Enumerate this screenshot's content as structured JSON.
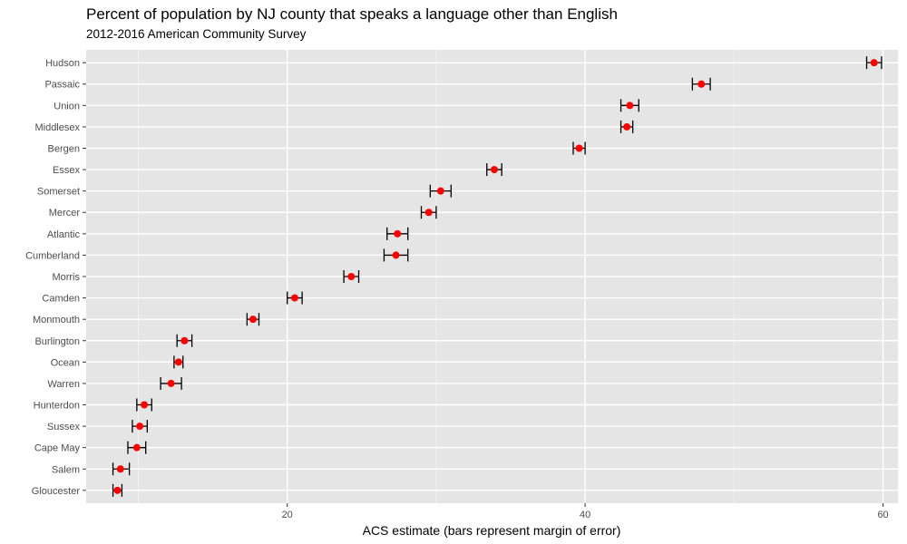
{
  "chart_data": {
    "type": "scatter",
    "title": "Percent of population by NJ county that speaks a language other than English",
    "subtitle": "2012-2016 American Community Survey",
    "xlabel": "ACS estimate (bars represent margin of error)",
    "ylabel": "",
    "xlim": [
      6.5,
      61
    ],
    "x_ticks": [
      20,
      40,
      60
    ],
    "x_minor_ticks": [
      10,
      30,
      50
    ],
    "grid": true,
    "legend": "none",
    "colors": {
      "panel_background": "#e5e5e5",
      "grid_major": "#ffffff",
      "point": "#ff0000",
      "error_bar": "#000000",
      "tick_label": "#4d4d4d"
    },
    "categories": [
      "Hudson",
      "Passaic",
      "Union",
      "Middlesex",
      "Bergen",
      "Essex",
      "Somerset",
      "Mercer",
      "Atlantic",
      "Cumberland",
      "Morris",
      "Camden",
      "Monmouth",
      "Burlington",
      "Ocean",
      "Warren",
      "Hunterdon",
      "Sussex",
      "Cape May",
      "Salem",
      "Gloucester"
    ],
    "series": [
      {
        "values": [
          59.4,
          47.8,
          43.0,
          42.8,
          39.6,
          33.9,
          30.3,
          29.5,
          27.4,
          27.3,
          24.3,
          20.5,
          17.7,
          13.1,
          12.7,
          12.2,
          10.4,
          10.1,
          9.9,
          8.8,
          8.6
        ],
        "lower": [
          58.9,
          47.2,
          42.4,
          42.4,
          39.2,
          33.4,
          29.6,
          29.0,
          26.7,
          26.5,
          23.8,
          20.0,
          17.3,
          12.6,
          12.4,
          11.5,
          9.9,
          9.6,
          9.3,
          8.3,
          8.3
        ],
        "upper": [
          59.9,
          48.4,
          43.6,
          43.2,
          40.0,
          34.4,
          31.0,
          30.0,
          28.1,
          28.1,
          24.8,
          21.0,
          18.1,
          13.6,
          13.0,
          12.9,
          10.9,
          10.6,
          10.5,
          9.4,
          8.9
        ]
      }
    ]
  }
}
